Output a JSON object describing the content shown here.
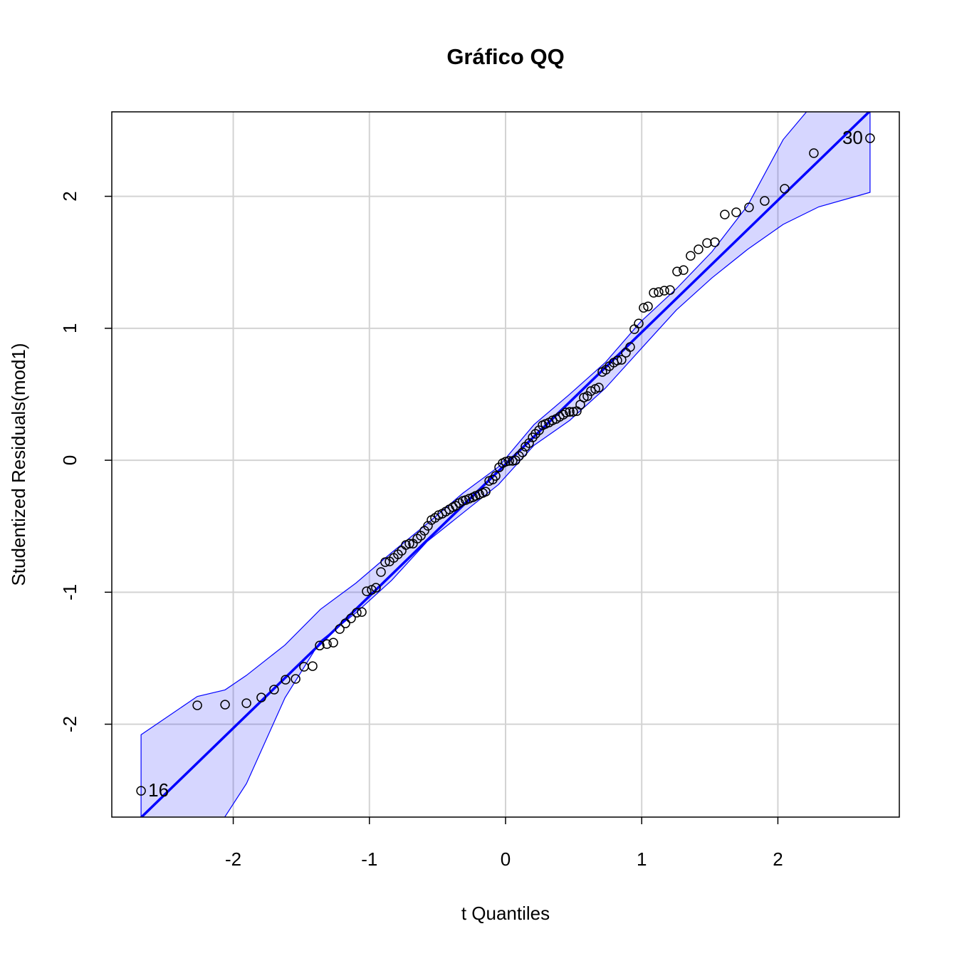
{
  "chart_data": {
    "type": "qq",
    "title": "Gráfico QQ",
    "xlabel": "t Quantiles",
    "ylabel": "Studentized Residuals(mod1)",
    "xlim": [
      -2.892,
      2.892
    ],
    "ylim": [
      -2.704,
      2.64
    ],
    "xticks": [
      -2,
      -1,
      0,
      1,
      2
    ],
    "yticks": [
      -2,
      -1,
      0,
      1,
      2
    ],
    "grid": true,
    "point_color": "#000000",
    "line_color": "#0000ff",
    "band_color": "#0000ff",
    "reference_line": {
      "intercept": -0.03,
      "slope": 1.0
    },
    "x": [
      -2.677,
      -2.264,
      -2.06,
      -1.903,
      -1.794,
      -1.7,
      -1.616,
      -1.542,
      -1.48,
      -1.417,
      -1.365,
      -1.312,
      -1.265,
      -1.218,
      -1.176,
      -1.135,
      -1.093,
      -1.056,
      -1.02,
      -0.983,
      -0.952,
      -0.915,
      -0.884,
      -0.852,
      -0.821,
      -0.79,
      -0.763,
      -0.732,
      -0.706,
      -0.68,
      -0.648,
      -0.622,
      -0.596,
      -0.57,
      -0.544,
      -0.518,
      -0.492,
      -0.465,
      -0.439,
      -0.413,
      -0.387,
      -0.366,
      -0.34,
      -0.314,
      -0.293,
      -0.267,
      -0.24,
      -0.22,
      -0.193,
      -0.167,
      -0.146,
      -0.12,
      -0.094,
      -0.073,
      -0.047,
      -0.021,
      0,
      0.026,
      0.052,
      0.073,
      0.099,
      0.125,
      0.146,
      0.173,
      0.199,
      0.22,
      0.246,
      0.272,
      0.293,
      0.319,
      0.345,
      0.371,
      0.397,
      0.424,
      0.444,
      0.471,
      0.497,
      0.523,
      0.549,
      0.575,
      0.601,
      0.627,
      0.659,
      0.685,
      0.711,
      0.737,
      0.763,
      0.795,
      0.821,
      0.852,
      0.884,
      0.915,
      0.946,
      0.978,
      1.014,
      1.046,
      1.088,
      1.124,
      1.166,
      1.208,
      1.26,
      1.307,
      1.359,
      1.417,
      1.48,
      1.537,
      1.61,
      1.694,
      1.788,
      1.903,
      2.05,
      2.264,
      2.677
    ],
    "y": [
      -2.505,
      -1.857,
      -1.852,
      -1.841,
      -1.798,
      -1.738,
      -1.663,
      -1.657,
      -1.565,
      -1.56,
      -1.404,
      -1.393,
      -1.382,
      -1.279,
      -1.236,
      -1.198,
      -1.155,
      -1.15,
      -0.993,
      -0.982,
      -0.966,
      -0.847,
      -0.772,
      -0.767,
      -0.74,
      -0.713,
      -0.686,
      -0.642,
      -0.632,
      -0.632,
      -0.594,
      -0.572,
      -0.534,
      -0.497,
      -0.453,
      -0.437,
      -0.416,
      -0.405,
      -0.389,
      -0.372,
      -0.356,
      -0.345,
      -0.324,
      -0.308,
      -0.302,
      -0.291,
      -0.281,
      -0.27,
      -0.259,
      -0.248,
      -0.238,
      -0.157,
      -0.146,
      -0.119,
      -0.054,
      -0.022,
      -0.011,
      -0.005,
      -0.005,
      0,
      0.032,
      0.059,
      0.103,
      0.13,
      0.173,
      0.2,
      0.227,
      0.265,
      0.275,
      0.286,
      0.302,
      0.313,
      0.329,
      0.345,
      0.362,
      0.367,
      0.367,
      0.372,
      0.421,
      0.475,
      0.486,
      0.524,
      0.54,
      0.551,
      0.669,
      0.686,
      0.713,
      0.74,
      0.756,
      0.761,
      0.815,
      0.858,
      0.993,
      1.036,
      1.155,
      1.166,
      1.269,
      1.274,
      1.285,
      1.29,
      1.43,
      1.441,
      1.549,
      1.598,
      1.646,
      1.652,
      1.862,
      1.879,
      1.916,
      1.965,
      2.057,
      2.327,
      2.44
    ],
    "envelope": {
      "x": [
        -2.677,
        -2.264,
        -2.06,
        -1.903,
        -1.62,
        -1.36,
        -1.098,
        -0.837,
        -0.575,
        -0.314,
        -0.052,
        0.209,
        0.471,
        0.732,
        0.993,
        1.255,
        1.516,
        1.778,
        2.039,
        2.3,
        2.677
      ],
      "upper": [
        -2.08,
        -1.79,
        -1.74,
        -1.63,
        -1.4,
        -1.13,
        -0.93,
        -0.7,
        -0.48,
        -0.25,
        -0.05,
        0.27,
        0.5,
        0.74,
        1.05,
        1.3,
        1.58,
        1.93,
        2.43,
        2.75,
        3.0
      ],
      "lower": [
        -3.2,
        -2.9,
        -2.7,
        -2.45,
        -1.8,
        -1.37,
        -1.155,
        -0.91,
        -0.615,
        -0.4,
        -0.184,
        0.113,
        0.302,
        0.545,
        0.842,
        1.139,
        1.382,
        1.598,
        1.787,
        1.92,
        2.03
      ]
    },
    "annotations": [
      {
        "text": "16",
        "x": -2.677,
        "y": -2.505
      },
      {
        "text": "30",
        "x": 2.677,
        "y": 2.44
      }
    ]
  }
}
